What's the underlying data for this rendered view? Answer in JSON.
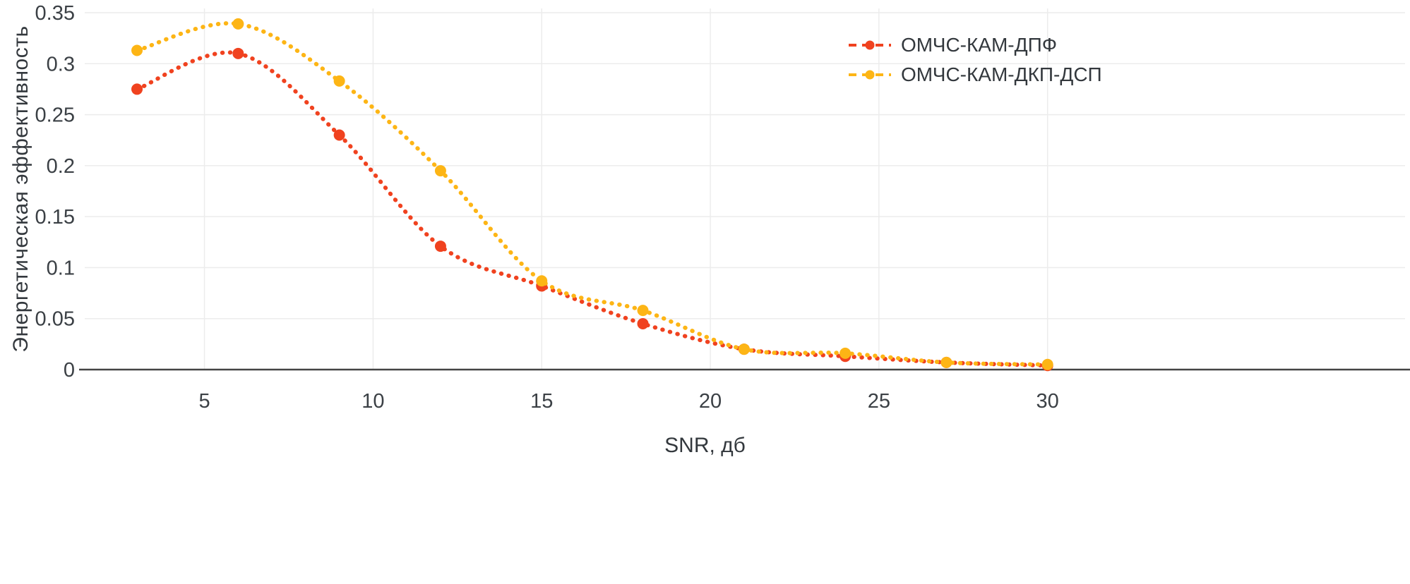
{
  "chart_data": {
    "type": "line",
    "title": "",
    "xlabel": "SNR, дб",
    "ylabel": "Энергетическая эффективность",
    "line_style": "dotted",
    "marker": "circle",
    "grid": true,
    "legend_position": "top-right",
    "x": [
      3,
      6,
      9,
      12,
      15,
      18,
      21,
      24,
      27,
      30
    ],
    "series": [
      {
        "name": "ОМЧС-КАМ-ДПФ",
        "color": "#f0421f",
        "values": [
          0.275,
          0.31,
          0.23,
          0.121,
          0.082,
          0.045,
          0.02,
          0.013,
          0.007,
          0.004
        ]
      },
      {
        "name": "ОМЧС-КАМ-ДКП-ДСП",
        "color": "#fdb515",
        "values": [
          0.313,
          0.339,
          0.283,
          0.195,
          0.087,
          0.058,
          0.02,
          0.016,
          0.007,
          0.005
        ]
      }
    ],
    "x_ticks": [
      5,
      10,
      15,
      20,
      25,
      30
    ],
    "y_ticks": [
      0,
      0.05,
      0.1,
      0.15,
      0.2,
      0.25,
      0.3,
      0.35
    ],
    "xlim": [
      1.45,
      40.6
    ],
    "ylim": [
      0,
      0.35
    ],
    "axis_color": "#444444",
    "grid_color": "#ececec",
    "tick_label_color": "#3b4045"
  }
}
